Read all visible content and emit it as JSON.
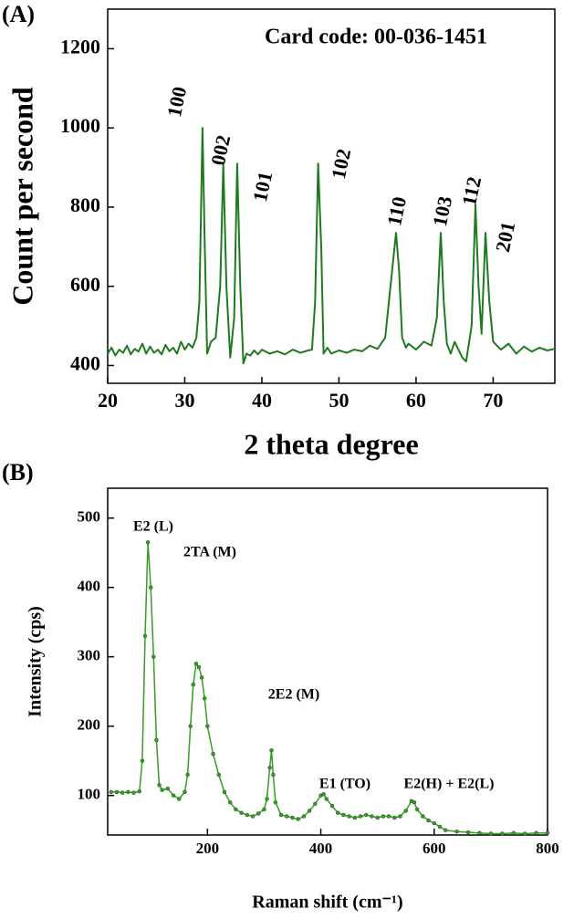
{
  "chart_data": [
    {
      "type": "line",
      "panel_label": "(A)",
      "x_label": "2 theta degree",
      "y_label": "Count per second",
      "annotations": [
        "Card code: 00-036-1451",
        "100",
        "002",
        "101",
        "102",
        "110",
        "103",
        "112",
        "201"
      ],
      "xlim": [
        20,
        78
      ],
      "xticks": [
        20,
        30,
        40,
        50,
        60,
        70
      ],
      "ylim": [
        355,
        1300
      ],
      "yticks": [
        400,
        600,
        800,
        1000,
        1200
      ],
      "series": [
        {
          "color": "#1f7a1f",
          "x": [
            20,
            20.5,
            21,
            21.5,
            22,
            22.5,
            23,
            23.5,
            24,
            24.5,
            25,
            25.5,
            26,
            26.5,
            27,
            27.5,
            28,
            28.5,
            29,
            29.5,
            30,
            30.5,
            31,
            31.5,
            31.9,
            32.3,
            32.6,
            32.9,
            33.4,
            34,
            34.6,
            35,
            35.4,
            35.9,
            36.4,
            36.8,
            37.2,
            37.6,
            38,
            38.5,
            39,
            39.5,
            40,
            41,
            42,
            43,
            44,
            45,
            46,
            46.5,
            46.9,
            47.3,
            47.7,
            48,
            48.5,
            49,
            50,
            51,
            52,
            53,
            54,
            55,
            56,
            56.9,
            57.4,
            57.8,
            58.2,
            58.7,
            59,
            60,
            61,
            62,
            62.7,
            63.2,
            63.6,
            64,
            64.5,
            65,
            66,
            66.5,
            67.2,
            67.7,
            68.1,
            68.5,
            69,
            69.5,
            70,
            71,
            72,
            73,
            74,
            75,
            76,
            77,
            78
          ],
          "values": [
            430,
            445,
            425,
            440,
            432,
            450,
            428,
            442,
            435,
            455,
            430,
            448,
            432,
            440,
            428,
            452,
            436,
            445,
            430,
            460,
            440,
            455,
            445,
            470,
            560,
            1000,
            700,
            430,
            460,
            470,
            600,
            910,
            600,
            420,
            520,
            910,
            600,
            405,
            430,
            425,
            438,
            428,
            440,
            430,
            436,
            428,
            440,
            432,
            438,
            440,
            560,
            910,
            700,
            430,
            445,
            430,
            438,
            432,
            440,
            436,
            450,
            442,
            470,
            640,
            735,
            640,
            470,
            445,
            455,
            440,
            460,
            450,
            520,
            735,
            560,
            455,
            430,
            460,
            420,
            410,
            500,
            805,
            600,
            480,
            735,
            560,
            460,
            440,
            455,
            430,
            448,
            435,
            445,
            438,
            442
          ]
        }
      ]
    },
    {
      "type": "line",
      "panel_label": "(B)",
      "x_label": "Raman shift (cm⁻¹)",
      "y_label": "Intensity (cps)",
      "annotations": [
        "E2 (L)",
        "2TA (M)",
        "2E2 (M)",
        "E1 (TO)",
        "E2(H) + E2(L)"
      ],
      "xlim": [
        24,
        800
      ],
      "xticks": [
        200,
        400,
        600,
        800
      ],
      "ylim": [
        43,
        543
      ],
      "yticks": [
        100,
        200,
        300,
        400,
        500
      ],
      "series": [
        {
          "color": "#3a9a2a",
          "x": [
            30,
            40,
            50,
            60,
            70,
            80,
            85,
            90,
            95,
            100,
            105,
            110,
            115,
            120,
            130,
            140,
            150,
            160,
            165,
            170,
            175,
            180,
            185,
            190,
            195,
            200,
            210,
            220,
            230,
            240,
            250,
            260,
            270,
            280,
            290,
            300,
            305,
            310,
            313,
            316,
            320,
            330,
            340,
            350,
            360,
            370,
            380,
            390,
            400,
            405,
            410,
            420,
            430,
            440,
            450,
            460,
            470,
            480,
            490,
            500,
            510,
            520,
            530,
            540,
            550,
            560,
            565,
            570,
            580,
            590,
            600,
            610,
            620,
            640,
            660,
            680,
            700,
            720,
            740,
            760,
            780,
            800
          ],
          "values": [
            105,
            105,
            104,
            105,
            104,
            106,
            150,
            330,
            465,
            400,
            300,
            180,
            115,
            108,
            110,
            100,
            95,
            105,
            130,
            200,
            260,
            290,
            285,
            270,
            240,
            200,
            160,
            130,
            105,
            90,
            80,
            75,
            72,
            70,
            74,
            80,
            95,
            140,
            165,
            130,
            90,
            72,
            70,
            68,
            66,
            70,
            78,
            88,
            100,
            102,
            95,
            85,
            75,
            72,
            70,
            68,
            70,
            72,
            70,
            68,
            70,
            70,
            68,
            70,
            78,
            92,
            90,
            80,
            70,
            64,
            60,
            55,
            50,
            48,
            47,
            46,
            45,
            45,
            46,
            45,
            46,
            46
          ]
        }
      ]
    }
  ]
}
